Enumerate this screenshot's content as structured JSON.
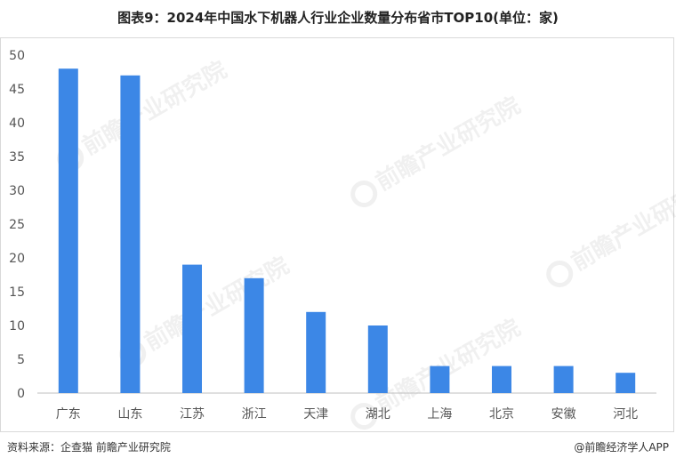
{
  "title": "图表9：2024年中国水下机器人行业企业数量分布省市TOP10(单位：家)",
  "footer": {
    "source": "资料来源：企查猫 前瞻产业研究院",
    "credit": "@前瞻经济学人APP"
  },
  "watermark": "前瞻产业研究院",
  "colors": {
    "bar": "#3c87e6",
    "axis": "#bfbfbf",
    "text": "#555555"
  },
  "chart_data": {
    "type": "bar",
    "categories": [
      "广东",
      "山东",
      "江苏",
      "浙江",
      "天津",
      "湖北",
      "上海",
      "北京",
      "安徽",
      "河北"
    ],
    "values": [
      48,
      47,
      19,
      17,
      12,
      10,
      4,
      4,
      4,
      3
    ],
    "ylim": [
      0,
      50
    ],
    "yticks": [
      0,
      5,
      10,
      15,
      20,
      25,
      30,
      35,
      40,
      45,
      50
    ],
    "grid": false,
    "legend": "none"
  }
}
